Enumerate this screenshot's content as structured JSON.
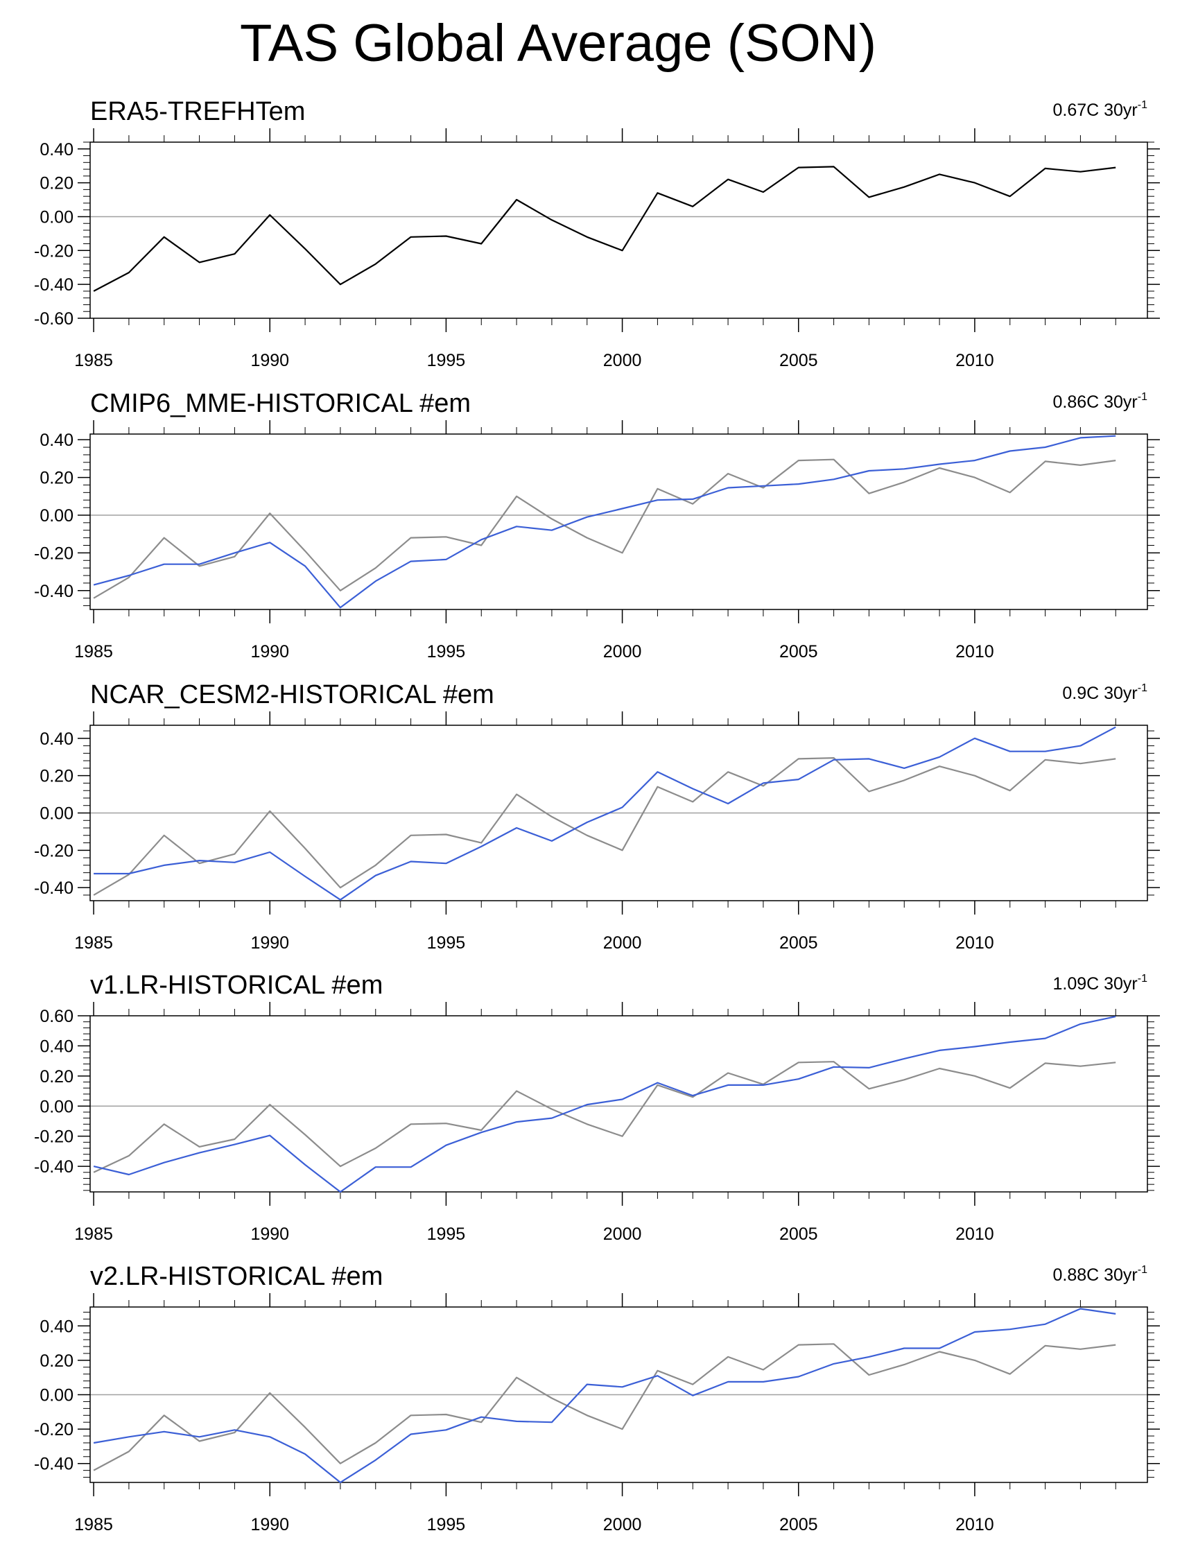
{
  "figure": {
    "title": "TAS Global Average (SON)"
  },
  "chart_data": [
    {
      "type": "line",
      "title": "ERA5-TREFHTem",
      "trend_label": "0.67C 30yr",
      "trend_superscript": "-1",
      "xlabel": "",
      "ylabel": "",
      "xlim": [
        1984.9,
        2014.9
      ],
      "ylim": [
        -0.6,
        0.44
      ],
      "x_ticks": [
        1985,
        1990,
        1995,
        2000,
        2005,
        2010
      ],
      "x_tick_labels": [
        "1985",
        "1990",
        "1995",
        "2000",
        "2005",
        "2010"
      ],
      "y_ticks": [
        -0.6,
        -0.4,
        -0.2,
        0.0,
        0.2,
        0.4
      ],
      "y_tick_labels": [
        "-0.60",
        "-0.40",
        "-0.20",
        "0.00",
        "0.20",
        "0.40"
      ],
      "x": [
        1985,
        1986,
        1987,
        1988,
        1989,
        1990,
        1991,
        1992,
        1993,
        1994,
        1995,
        1996,
        1997,
        1998,
        1999,
        2000,
        2001,
        2002,
        2003,
        2004,
        2005,
        2006,
        2007,
        2008,
        2009,
        2010,
        2011,
        2012,
        2013,
        2014
      ],
      "series": [
        {
          "name": "ERA5",
          "color": "#000000",
          "values": [
            -0.44,
            -0.33,
            -0.12,
            -0.27,
            -0.22,
            0.01,
            -0.19,
            -0.4,
            -0.28,
            -0.12,
            -0.115,
            -0.16,
            0.1,
            -0.02,
            -0.12,
            -0.2,
            0.14,
            0.06,
            0.22,
            0.145,
            0.29,
            0.295,
            0.115,
            0.175,
            0.25,
            0.2,
            0.12,
            0.285,
            0.265,
            0.29
          ]
        }
      ]
    },
    {
      "type": "line",
      "title": "CMIP6_MME-HISTORICAL  #em",
      "trend_label": "0.86C 30yr",
      "trend_superscript": "-1",
      "xlabel": "",
      "ylabel": "",
      "xlim": [
        1984.9,
        2014.9
      ],
      "ylim": [
        -0.5,
        0.43
      ],
      "x_ticks": [
        1985,
        1990,
        1995,
        2000,
        2005,
        2010
      ],
      "x_tick_labels": [
        "1985",
        "1990",
        "1995",
        "2000",
        "2005",
        "2010"
      ],
      "y_ticks": [
        -0.4,
        -0.2,
        0.0,
        0.2,
        0.4
      ],
      "y_tick_labels": [
        "-0.40",
        "-0.20",
        "0.00",
        "0.20",
        "0.40"
      ],
      "x": [
        1985,
        1986,
        1987,
        1988,
        1989,
        1990,
        1991,
        1992,
        1993,
        1994,
        1995,
        1996,
        1997,
        1998,
        1999,
        2000,
        2001,
        2002,
        2003,
        2004,
        2005,
        2006,
        2007,
        2008,
        2009,
        2010,
        2011,
        2012,
        2013,
        2014
      ],
      "series": [
        {
          "name": "ERA5",
          "color": "#8c8c8c",
          "values": [
            -0.44,
            -0.33,
            -0.12,
            -0.27,
            -0.22,
            0.01,
            -0.19,
            -0.4,
            -0.28,
            -0.12,
            -0.115,
            -0.16,
            0.1,
            -0.02,
            -0.12,
            -0.2,
            0.14,
            0.06,
            0.22,
            0.145,
            0.29,
            0.295,
            0.115,
            0.175,
            0.25,
            0.2,
            0.12,
            0.285,
            0.265,
            0.29
          ]
        },
        {
          "name": "CMIP6_MME",
          "color": "#3b5fd6",
          "values": [
            -0.37,
            -0.32,
            -0.26,
            -0.26,
            -0.2,
            -0.145,
            -0.27,
            -0.49,
            -0.35,
            -0.245,
            -0.235,
            -0.13,
            -0.06,
            -0.08,
            -0.01,
            0.035,
            0.08,
            0.085,
            0.145,
            0.155,
            0.165,
            0.19,
            0.235,
            0.245,
            0.27,
            0.29,
            0.34,
            0.36,
            0.41,
            0.42
          ]
        }
      ]
    },
    {
      "type": "line",
      "title": "NCAR_CESM2-HISTORICAL  #em",
      "trend_label": "0.9C 30yr",
      "trend_superscript": "-1",
      "xlabel": "",
      "ylabel": "",
      "xlim": [
        1984.9,
        2014.9
      ],
      "ylim": [
        -0.47,
        0.47
      ],
      "x_ticks": [
        1985,
        1990,
        1995,
        2000,
        2005,
        2010
      ],
      "x_tick_labels": [
        "1985",
        "1990",
        "1995",
        "2000",
        "2005",
        "2010"
      ],
      "y_ticks": [
        -0.4,
        -0.2,
        0.0,
        0.2,
        0.4
      ],
      "y_tick_labels": [
        "-0.40",
        "-0.20",
        "0.00",
        "0.20",
        "0.40"
      ],
      "x": [
        1985,
        1986,
        1987,
        1988,
        1989,
        1990,
        1991,
        1992,
        1993,
        1994,
        1995,
        1996,
        1997,
        1998,
        1999,
        2000,
        2001,
        2002,
        2003,
        2004,
        2005,
        2006,
        2007,
        2008,
        2009,
        2010,
        2011,
        2012,
        2013,
        2014
      ],
      "series": [
        {
          "name": "ERA5",
          "color": "#8c8c8c",
          "values": [
            -0.44,
            -0.33,
            -0.12,
            -0.27,
            -0.22,
            0.01,
            -0.19,
            -0.4,
            -0.28,
            -0.12,
            -0.115,
            -0.16,
            0.1,
            -0.02,
            -0.12,
            -0.2,
            0.14,
            0.06,
            0.22,
            0.145,
            0.29,
            0.295,
            0.115,
            0.175,
            0.25,
            0.2,
            0.12,
            0.285,
            0.265,
            0.29
          ]
        },
        {
          "name": "NCAR_CESM2",
          "color": "#3b5fd6",
          "values": [
            -0.325,
            -0.325,
            -0.28,
            -0.255,
            -0.265,
            -0.21,
            -0.34,
            -0.465,
            -0.335,
            -0.26,
            -0.27,
            -0.18,
            -0.08,
            -0.15,
            -0.05,
            0.03,
            0.22,
            0.13,
            0.05,
            0.16,
            0.18,
            0.285,
            0.29,
            0.24,
            0.3,
            0.4,
            0.33,
            0.33,
            0.36,
            0.46
          ]
        }
      ]
    },
    {
      "type": "line",
      "title": "v1.LR-HISTORICAL  #em",
      "trend_label": "1.09C 30yr",
      "trend_superscript": "-1",
      "xlabel": "",
      "ylabel": "",
      "xlim": [
        1984.9,
        2014.9
      ],
      "ylim": [
        -0.57,
        0.6
      ],
      "x_ticks": [
        1985,
        1990,
        1995,
        2000,
        2005,
        2010
      ],
      "x_tick_labels": [
        "1985",
        "1990",
        "1995",
        "2000",
        "2005",
        "2010"
      ],
      "y_ticks": [
        -0.4,
        -0.2,
        0.0,
        0.2,
        0.4,
        0.6
      ],
      "y_tick_labels": [
        "-0.40",
        "-0.20",
        "0.00",
        "0.20",
        "0.40",
        "0.60"
      ],
      "x": [
        1985,
        1986,
        1987,
        1988,
        1989,
        1990,
        1991,
        1992,
        1993,
        1994,
        1995,
        1996,
        1997,
        1998,
        1999,
        2000,
        2001,
        2002,
        2003,
        2004,
        2005,
        2006,
        2007,
        2008,
        2009,
        2010,
        2011,
        2012,
        2013,
        2014
      ],
      "series": [
        {
          "name": "ERA5",
          "color": "#8c8c8c",
          "values": [
            -0.44,
            -0.33,
            -0.12,
            -0.27,
            -0.22,
            0.01,
            -0.19,
            -0.4,
            -0.28,
            -0.12,
            -0.115,
            -0.16,
            0.1,
            -0.02,
            -0.12,
            -0.2,
            0.14,
            0.06,
            0.22,
            0.145,
            0.29,
            0.295,
            0.115,
            0.175,
            0.25,
            0.2,
            0.12,
            0.285,
            0.265,
            0.29
          ]
        },
        {
          "name": "v1.LR",
          "color": "#3b5fd6",
          "values": [
            -0.4,
            -0.455,
            -0.375,
            -0.31,
            -0.255,
            -0.195,
            -0.39,
            -0.57,
            -0.405,
            -0.405,
            -0.26,
            -0.175,
            -0.105,
            -0.08,
            0.01,
            0.045,
            0.155,
            0.07,
            0.14,
            0.14,
            0.18,
            0.26,
            0.255,
            0.315,
            0.37,
            0.395,
            0.425,
            0.45,
            0.545,
            0.595
          ]
        }
      ]
    },
    {
      "type": "line",
      "title": "v2.LR-HISTORICAL  #em",
      "trend_label": "0.88C 30yr",
      "trend_superscript": "-1",
      "xlabel": "",
      "ylabel": "",
      "xlim": [
        1984.9,
        2014.9
      ],
      "ylim": [
        -0.51,
        0.51
      ],
      "x_ticks": [
        1985,
        1990,
        1995,
        2000,
        2005,
        2010
      ],
      "x_tick_labels": [
        "1985",
        "1990",
        "1995",
        "2000",
        "2005",
        "2010"
      ],
      "y_ticks": [
        -0.4,
        -0.2,
        0.0,
        0.2,
        0.4
      ],
      "y_tick_labels": [
        "-0.40",
        "-0.20",
        "0.00",
        "0.20",
        "0.40"
      ],
      "x": [
        1985,
        1986,
        1987,
        1988,
        1989,
        1990,
        1991,
        1992,
        1993,
        1994,
        1995,
        1996,
        1997,
        1998,
        1999,
        2000,
        2001,
        2002,
        2003,
        2004,
        2005,
        2006,
        2007,
        2008,
        2009,
        2010,
        2011,
        2012,
        2013,
        2014
      ],
      "series": [
        {
          "name": "ERA5",
          "color": "#8c8c8c",
          "values": [
            -0.44,
            -0.33,
            -0.12,
            -0.27,
            -0.22,
            0.01,
            -0.19,
            -0.4,
            -0.28,
            -0.12,
            -0.115,
            -0.16,
            0.1,
            -0.02,
            -0.12,
            -0.2,
            0.14,
            0.06,
            0.22,
            0.145,
            0.29,
            0.295,
            0.115,
            0.175,
            0.25,
            0.2,
            0.12,
            0.285,
            0.265,
            0.29
          ]
        },
        {
          "name": "v2.LR",
          "color": "#3b5fd6",
          "values": [
            -0.28,
            -0.245,
            -0.215,
            -0.245,
            -0.205,
            -0.245,
            -0.345,
            -0.51,
            -0.38,
            -0.23,
            -0.205,
            -0.13,
            -0.155,
            -0.16,
            0.06,
            0.045,
            0.11,
            -0.005,
            0.075,
            0.075,
            0.105,
            0.18,
            0.22,
            0.27,
            0.27,
            0.365,
            0.38,
            0.41,
            0.5,
            0.47
          ]
        }
      ]
    }
  ]
}
